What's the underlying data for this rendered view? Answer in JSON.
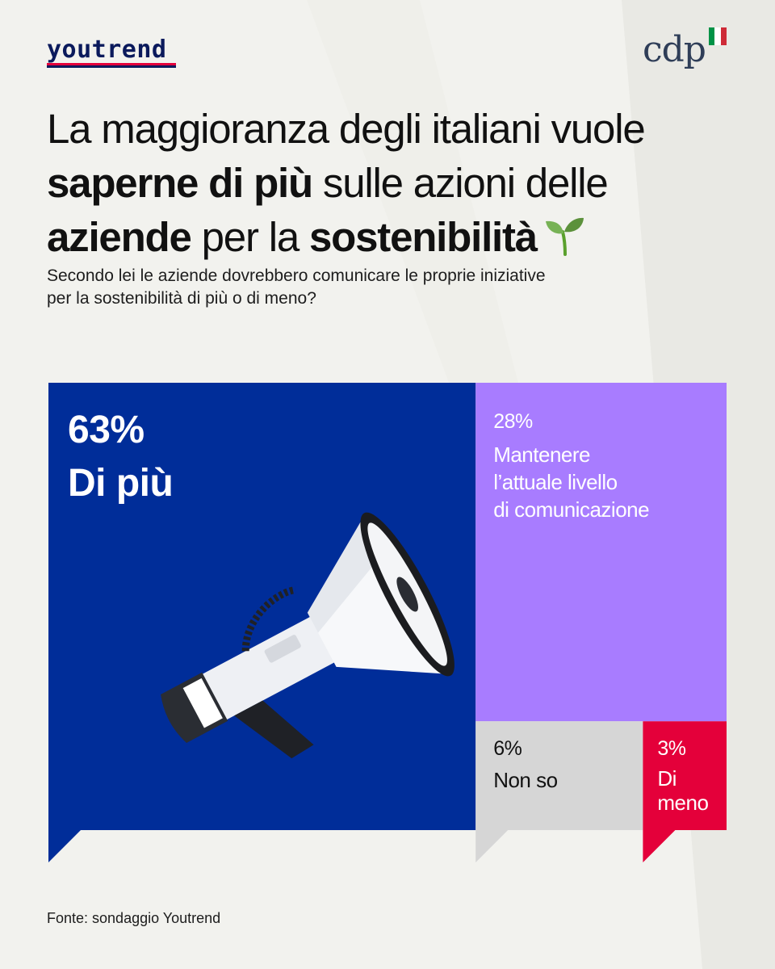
{
  "brand": {
    "left_logo": "youtrend",
    "right_logo": "cdp",
    "flag_colors": [
      "#009246",
      "#ffffff",
      "#ce2b37"
    ]
  },
  "title": {
    "line1": "La maggioranza degli italiani vuole",
    "line2_bold": "saperne di più",
    "line2_rest": " sulle azioni delle",
    "line3_bold1": "aziende",
    "line3_mid": " per la ",
    "line3_bold2": "sostenibilità",
    "emoji_icon": "seedling-icon"
  },
  "subtitle": {
    "line1": "Secondo lei le aziende dovrebbero comunicare le proprie iniziative",
    "line2": "per la sostenibilità di più o di meno?"
  },
  "chart_data": {
    "type": "treemap",
    "title": "",
    "unit": "%",
    "items": [
      {
        "key": "piu",
        "label_lines": [
          "Di più"
        ],
        "value": 63,
        "value_label": "63%",
        "color": "#002d99",
        "text_color": "#ffffff",
        "icon": "megaphone-icon"
      },
      {
        "key": "mantenere",
        "label_lines": [
          "Mantenere",
          "l’attuale livello",
          "di comunicazione"
        ],
        "value": 28,
        "value_label": "28%",
        "color": "#a87cff",
        "text_color": "#ffffff"
      },
      {
        "key": "nonso",
        "label_lines": [
          "Non so"
        ],
        "value": 6,
        "value_label": "6%",
        "color": "#d6d6d6",
        "text_color": "#111111"
      },
      {
        "key": "meno",
        "label_lines": [
          "Di",
          "meno"
        ],
        "value": 3,
        "value_label": "3%",
        "color": "#e4003a",
        "text_color": "#ffffff"
      }
    ]
  },
  "footer": {
    "source": "Fonte: sondaggio Youtrend"
  }
}
